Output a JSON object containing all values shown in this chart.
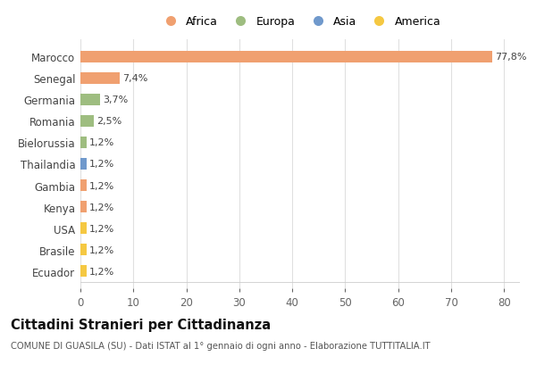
{
  "categories": [
    "Ecuador",
    "Brasile",
    "USA",
    "Kenya",
    "Gambia",
    "Thailandia",
    "Bielorussia",
    "Romania",
    "Germania",
    "Senegal",
    "Marocco"
  ],
  "values": [
    1.2,
    1.2,
    1.2,
    1.2,
    1.2,
    1.2,
    1.2,
    2.5,
    3.7,
    7.4,
    77.8
  ],
  "labels": [
    "1,2%",
    "1,2%",
    "1,2%",
    "1,2%",
    "1,2%",
    "1,2%",
    "1,2%",
    "2,5%",
    "3,7%",
    "7,4%",
    "77,8%"
  ],
  "bar_colors": [
    "#F5C842",
    "#F5C842",
    "#F5C842",
    "#F0A070",
    "#F0A070",
    "#7099CC",
    "#9EBD80",
    "#9EBD80",
    "#9EBD80",
    "#F0A070",
    "#F0A070"
  ],
  "legend": [
    {
      "label": "Africa",
      "color": "#F0A070"
    },
    {
      "label": "Europa",
      "color": "#9EBD80"
    },
    {
      "label": "Asia",
      "color": "#7099CC"
    },
    {
      "label": "America",
      "color": "#F5C842"
    }
  ],
  "title": "Cittadini Stranieri per Cittadinanza",
  "subtitle": "COMUNE DI GUASILA (SU) - Dati ISTAT al 1° gennaio di ogni anno - Elaborazione TUTTITALIA.IT",
  "xlim": [
    0,
    83
  ],
  "xticks": [
    0,
    10,
    20,
    30,
    40,
    50,
    60,
    70,
    80
  ],
  "background_color": "#ffffff",
  "grid_color": "#e0e0e0",
  "bar_height": 0.55
}
